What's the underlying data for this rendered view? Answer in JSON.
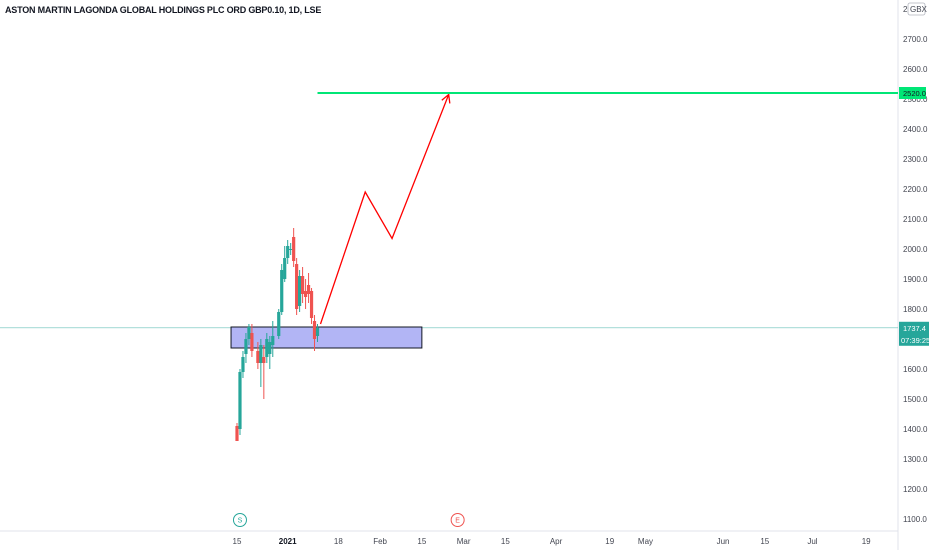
{
  "chart_data": {
    "type": "candlestick",
    "title": "ASTON MARTIN LAGONDA GLOBAL HOLDINGS PLC ORD GBP0.10, 1D, LSE",
    "currency_label": "GBX",
    "currency_prefix": "2",
    "ylim": [
      1060,
      2830
    ],
    "yticks": [
      1100,
      1200,
      1300,
      1400,
      1500,
      1600,
      1700,
      1800,
      1900,
      2000,
      2100,
      2200,
      2300,
      2400,
      2500,
      2600,
      2700
    ],
    "ytick_labels": [
      "1100.0",
      "1200.0",
      "1300.0",
      "1400.0",
      "1500.0",
      "1600.0",
      "1700.0",
      "1800.0",
      "1900.0",
      "2000.0",
      "2100.0",
      "2200.0",
      "2300.0",
      "2400.0",
      "2500.0",
      "2600.0",
      "2700.0"
    ],
    "xlim_days": [
      -17,
      202
    ],
    "xticks": [
      {
        "day": -17,
        "label": "15",
        "bold": false
      },
      {
        "day": 0,
        "label": "2021",
        "bold": true
      },
      {
        "day": 17,
        "label": "18",
        "bold": false
      },
      {
        "day": 31,
        "label": "Feb",
        "bold": false
      },
      {
        "day": 45,
        "label": "15",
        "bold": false
      },
      {
        "day": 59,
        "label": "Mar",
        "bold": false
      },
      {
        "day": 73,
        "label": "15",
        "bold": false
      },
      {
        "day": 90,
        "label": "Apr",
        "bold": false
      },
      {
        "day": 108,
        "label": "19",
        "bold": false
      },
      {
        "day": 120,
        "label": "May",
        "bold": false
      },
      {
        "day": 146,
        "label": "Jun",
        "bold": false
      },
      {
        "day": 160,
        "label": "15",
        "bold": false
      },
      {
        "day": 176,
        "label": "Jul",
        "bold": false
      },
      {
        "day": 194,
        "label": "19",
        "bold": false
      }
    ],
    "candles": [
      {
        "day": -17,
        "open": 1410,
        "high": 1420,
        "low": 1360,
        "close": 1360
      },
      {
        "day": -16,
        "open": 1400,
        "high": 1600,
        "low": 1380,
        "close": 1590
      },
      {
        "day": -15,
        "open": 1590,
        "high": 1660,
        "low": 1570,
        "close": 1640
      },
      {
        "day": -14,
        "open": 1650,
        "high": 1720,
        "low": 1620,
        "close": 1700
      },
      {
        "day": -13,
        "open": 1700,
        "high": 1750,
        "low": 1680,
        "close": 1740
      },
      {
        "day": -12,
        "open": 1720,
        "high": 1750,
        "low": 1640,
        "close": 1660
      },
      {
        "day": -10,
        "open": 1660,
        "high": 1690,
        "low": 1600,
        "close": 1620
      },
      {
        "day": -9,
        "open": 1620,
        "high": 1700,
        "low": 1540,
        "close": 1680
      },
      {
        "day": -8,
        "open": 1640,
        "high": 1680,
        "low": 1500,
        "close": 1620
      },
      {
        "day": -7,
        "open": 1640,
        "high": 1720,
        "low": 1620,
        "close": 1700
      },
      {
        "day": -6,
        "open": 1650,
        "high": 1710,
        "low": 1600,
        "close": 1690
      },
      {
        "day": -5,
        "open": 1680,
        "high": 1760,
        "low": 1640,
        "close": 1710
      },
      {
        "day": -3,
        "open": 1710,
        "high": 1800,
        "low": 1700,
        "close": 1790
      },
      {
        "day": -2,
        "open": 1790,
        "high": 1950,
        "low": 1780,
        "close": 1930
      },
      {
        "day": -1,
        "open": 1900,
        "high": 2010,
        "low": 1890,
        "close": 1970
      },
      {
        "day": 0,
        "open": 1970,
        "high": 2030,
        "low": 1950,
        "close": 2010
      },
      {
        "day": 1,
        "open": 2000,
        "high": 2020,
        "low": 1980,
        "close": 2000
      },
      {
        "day": 2,
        "open": 2040,
        "high": 2070,
        "low": 1940,
        "close": 1960
      },
      {
        "day": 3,
        "open": 1950,
        "high": 1970,
        "low": 1780,
        "close": 1800
      },
      {
        "day": 4,
        "open": 1810,
        "high": 1930,
        "low": 1790,
        "close": 1910
      },
      {
        "day": 5,
        "open": 1910,
        "high": 1940,
        "low": 1820,
        "close": 1850
      },
      {
        "day": 6,
        "open": 1860,
        "high": 1900,
        "low": 1800,
        "close": 1840
      },
      {
        "day": 7,
        "open": 1880,
        "high": 1920,
        "low": 1820,
        "close": 1850
      },
      {
        "day": 8,
        "open": 1860,
        "high": 1870,
        "low": 1750,
        "close": 1770
      },
      {
        "day": 9,
        "open": 1760,
        "high": 1780,
        "low": 1660,
        "close": 1700
      },
      {
        "day": 10,
        "open": 1710,
        "high": 1750,
        "low": 1690,
        "close": 1737.4
      }
    ],
    "support_zone": {
      "day_start": -19,
      "day_end": 45,
      "price_low": 1670,
      "price_high": 1740
    },
    "target_line": {
      "day_start": 10,
      "price": 2520
    },
    "projection_path": [
      {
        "day": 11,
        "price": 1750
      },
      {
        "day": 26,
        "price": 2190
      },
      {
        "day": 35,
        "price": 2035
      },
      {
        "day": 54,
        "price": 2515
      }
    ],
    "current_price": {
      "price": 1737.4,
      "label": "1737.4",
      "countdown": "07:39:25"
    },
    "target_badge": {
      "label": "2520.0"
    },
    "markers": [
      {
        "day": -16,
        "label": "S"
      },
      {
        "day": 57,
        "label": "E"
      }
    ],
    "colors": {
      "up": "#26a69a",
      "down": "#ef5350",
      "zone_fill": "#b2b5f5",
      "zone_border": "#131722",
      "target_line": "#00e676",
      "projection": "#ff0000",
      "current_line": "#26a69a"
    }
  }
}
